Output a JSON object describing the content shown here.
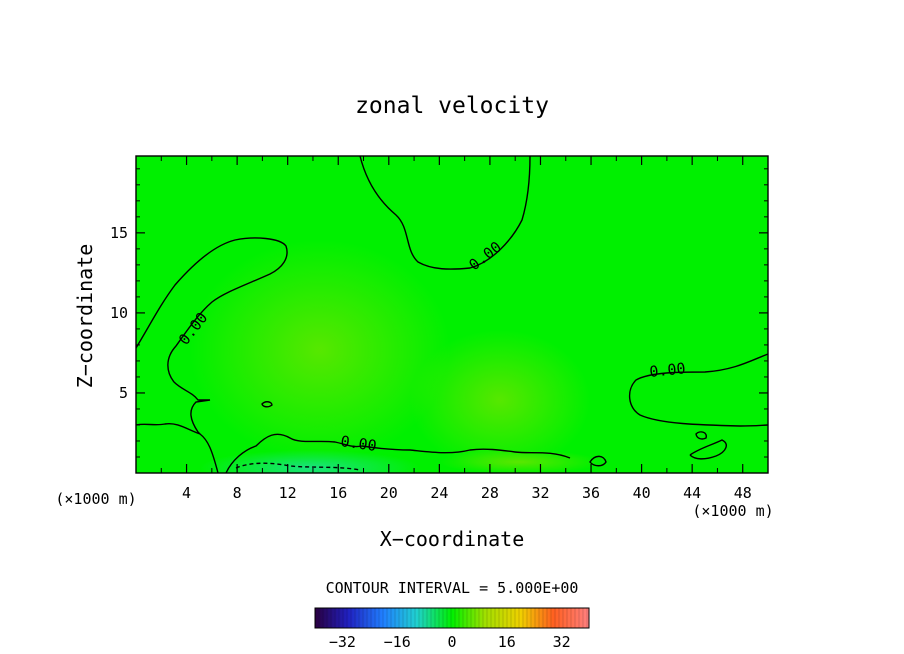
{
  "chart_data": {
    "type": "heatmap",
    "title": "zonal velocity",
    "xlabel": "X−coordinate",
    "ylabel": "Z−coordinate",
    "x_units_label": "(×1000 m)",
    "z_units_label": "(×1000 m)",
    "xlim": [
      0,
      50
    ],
    "ylim": [
      0,
      19.8
    ],
    "x_ticks": [
      4,
      8,
      12,
      16,
      20,
      24,
      28,
      32,
      36,
      40,
      44,
      48
    ],
    "y_ticks": [
      5,
      10,
      15
    ],
    "contour_interval_text": "CONTOUR INTERVAL = 5.000E+00",
    "contour_label": "0.00",
    "contour_level": 0,
    "field_description": "near-zero zonal velocity over most of domain; weak negative values near surface x=8-36 km",
    "colorbar": {
      "range": [
        -40,
        40
      ],
      "ticks": [
        -32,
        -16,
        0,
        16,
        32
      ]
    },
    "colors": {
      "background_field": "#00f000",
      "contour_line": "#000000",
      "frame": "#000000"
    }
  }
}
